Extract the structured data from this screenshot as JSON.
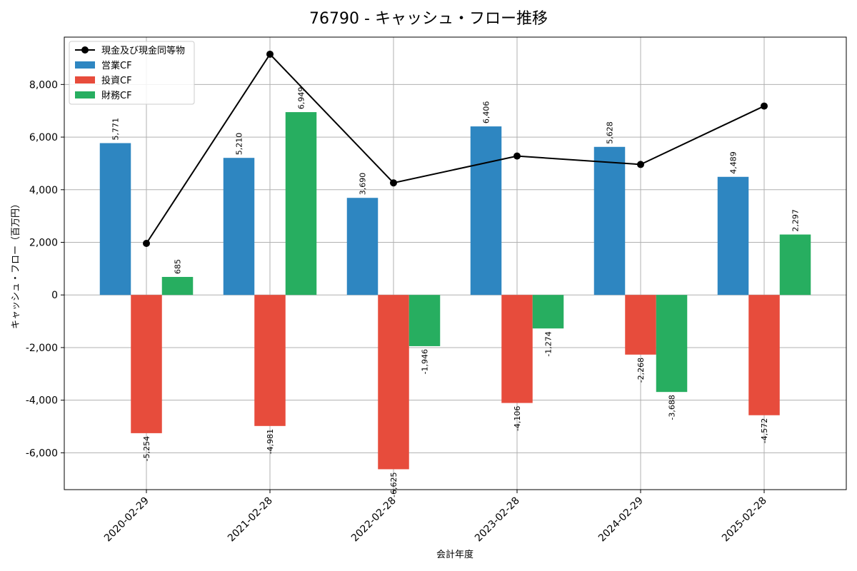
{
  "chart_data": {
    "type": "bar",
    "title": "76790 - キャッシュ・フロー推移",
    "xlabel": "会計年度",
    "ylabel": "キャッシュ・フロー（百万円）",
    "categories": [
      "2020-02-29",
      "2021-02-28",
      "2022-02-28",
      "2023-02-28",
      "2024-02-29",
      "2025-02-28"
    ],
    "ylim": [
      -7400,
      9800
    ],
    "yticks": [
      -6000,
      -4000,
      -2000,
      0,
      2000,
      4000,
      6000,
      8000
    ],
    "ytick_labels": [
      "-6,000",
      "-4,000",
      "-2,000",
      "0",
      "2,000",
      "4,000",
      "6,000",
      "8,000"
    ],
    "grid": true,
    "legend_position": "top-left",
    "series": [
      {
        "name": "営業CF",
        "kind": "bar",
        "color": "#2e86c1",
        "values": [
          5771,
          5210,
          3690,
          6406,
          5628,
          4489
        ],
        "labels": [
          "5,771",
          "5,210",
          "3,690",
          "6,406",
          "5,628",
          "4,489"
        ]
      },
      {
        "name": "投資CF",
        "kind": "bar",
        "color": "#e74c3c",
        "values": [
          -5254,
          -4981,
          -6625,
          -4106,
          -2268,
          -4572
        ],
        "labels": [
          "-5,254",
          "-4,981",
          "-6,625",
          "-4,106",
          "-2,268",
          "-4,572"
        ]
      },
      {
        "name": "財務CF",
        "kind": "bar",
        "color": "#27ae60",
        "values": [
          685,
          6949,
          -1946,
          -1274,
          -3688,
          2297
        ],
        "labels": [
          "685",
          "6,949",
          "-1,946",
          "-1,274",
          "-3,688",
          "2,297"
        ]
      },
      {
        "name": "現金及び現金同等物",
        "kind": "line",
        "color": "#000000",
        "values": [
          1960,
          9150,
          4260,
          5280,
          4960,
          7180
        ]
      }
    ]
  }
}
